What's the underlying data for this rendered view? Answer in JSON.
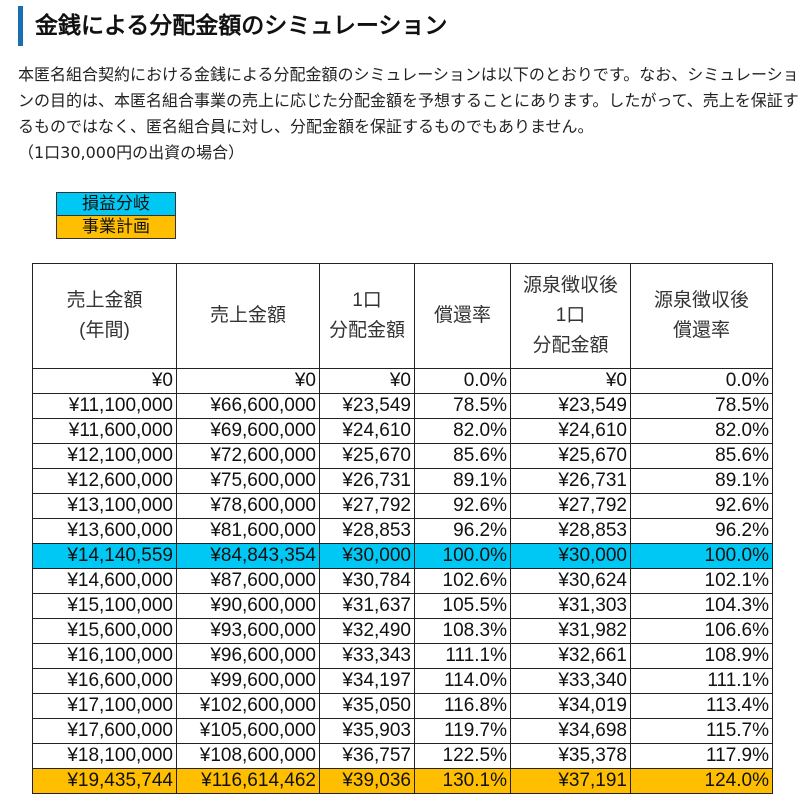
{
  "heading": "金銭による分配金額のシミュレーション",
  "intro": {
    "paragraph": "本匿名組合契約における金銭による分配金額のシミュレーションは以下のとおりです。なお、シミュレーションの目的は、本匿名組合事業の売上に応じた分配金額を予想することにあります。したがって、売上を保証するものではなく、匿名組合員に対し、分配金額を保証するものでもありません。",
    "note": "（1口30,000円の出資の場合）"
  },
  "legend": {
    "breakeven": "損益分岐",
    "business_plan": "事業計画"
  },
  "colors": {
    "breakeven": "#00c8f5",
    "business_plan": "#ffbf00",
    "heading_bar": "#1a6fb3"
  },
  "table": {
    "headers": [
      [
        "売上金額",
        "(年間)"
      ],
      [
        "売上金額"
      ],
      [
        "1口",
        "分配金額"
      ],
      [
        "償還率"
      ],
      [
        "源泉徴収後",
        "1口",
        "分配金額"
      ],
      [
        "源泉徴収後",
        "償還率"
      ]
    ],
    "rows": [
      {
        "cells": [
          "¥0",
          "¥0",
          "¥0",
          "0.0%",
          "¥0",
          "0.0%"
        ],
        "highlight": ""
      },
      {
        "cells": [
          "¥11,100,000",
          "¥66,600,000",
          "¥23,549",
          "78.5%",
          "¥23,549",
          "78.5%"
        ],
        "highlight": ""
      },
      {
        "cells": [
          "¥11,600,000",
          "¥69,600,000",
          "¥24,610",
          "82.0%",
          "¥24,610",
          "82.0%"
        ],
        "highlight": ""
      },
      {
        "cells": [
          "¥12,100,000",
          "¥72,600,000",
          "¥25,670",
          "85.6%",
          "¥25,670",
          "85.6%"
        ],
        "highlight": ""
      },
      {
        "cells": [
          "¥12,600,000",
          "¥75,600,000",
          "¥26,731",
          "89.1%",
          "¥26,731",
          "89.1%"
        ],
        "highlight": ""
      },
      {
        "cells": [
          "¥13,100,000",
          "¥78,600,000",
          "¥27,792",
          "92.6%",
          "¥27,792",
          "92.6%"
        ],
        "highlight": ""
      },
      {
        "cells": [
          "¥13,600,000",
          "¥81,600,000",
          "¥28,853",
          "96.2%",
          "¥28,853",
          "96.2%"
        ],
        "highlight": ""
      },
      {
        "cells": [
          "¥14,140,559",
          "¥84,843,354",
          "¥30,000",
          "100.0%",
          "¥30,000",
          "100.0%"
        ],
        "highlight": "breakeven"
      },
      {
        "cells": [
          "¥14,600,000",
          "¥87,600,000",
          "¥30,784",
          "102.6%",
          "¥30,624",
          "102.1%"
        ],
        "highlight": ""
      },
      {
        "cells": [
          "¥15,100,000",
          "¥90,600,000",
          "¥31,637",
          "105.5%",
          "¥31,303",
          "104.3%"
        ],
        "highlight": ""
      },
      {
        "cells": [
          "¥15,600,000",
          "¥93,600,000",
          "¥32,490",
          "108.3%",
          "¥31,982",
          "106.6%"
        ],
        "highlight": ""
      },
      {
        "cells": [
          "¥16,100,000",
          "¥96,600,000",
          "¥33,343",
          "111.1%",
          "¥32,661",
          "108.9%"
        ],
        "highlight": ""
      },
      {
        "cells": [
          "¥16,600,000",
          "¥99,600,000",
          "¥34,197",
          "114.0%",
          "¥33,340",
          "111.1%"
        ],
        "highlight": ""
      },
      {
        "cells": [
          "¥17,100,000",
          "¥102,600,000",
          "¥35,050",
          "116.8%",
          "¥34,019",
          "113.4%"
        ],
        "highlight": ""
      },
      {
        "cells": [
          "¥17,600,000",
          "¥105,600,000",
          "¥35,903",
          "119.7%",
          "¥34,698",
          "115.7%"
        ],
        "highlight": ""
      },
      {
        "cells": [
          "¥18,100,000",
          "¥108,600,000",
          "¥36,757",
          "122.5%",
          "¥35,378",
          "117.9%"
        ],
        "highlight": ""
      },
      {
        "cells": [
          "¥19,435,744",
          "¥116,614,462",
          "¥39,036",
          "130.1%",
          "¥37,191",
          "124.0%"
        ],
        "highlight": "business_plan"
      }
    ]
  }
}
